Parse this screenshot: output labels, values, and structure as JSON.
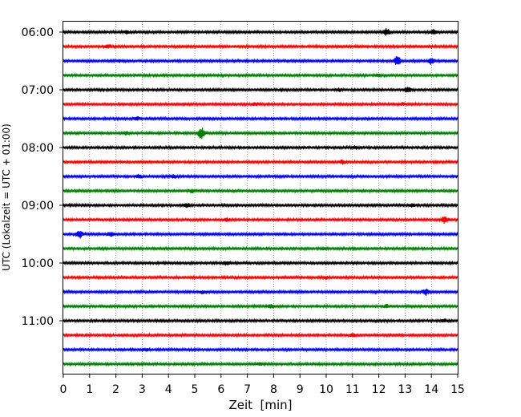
{
  "chart_data": {
    "type": "line",
    "subtype": "seismogram-helicorder",
    "xlabel": "Zeit  [min]",
    "ylabel": "UTC (Lokalzeit = UTC + 01:00)",
    "xlim": [
      0,
      15
    ],
    "x_ticks": [
      "0",
      "1",
      "2",
      "3",
      "4",
      "5",
      "6",
      "7",
      "8",
      "9",
      "10",
      "11",
      "12",
      "13",
      "14",
      "15"
    ],
    "y_tick_labels": [
      "06:00",
      "07:00",
      "08:00",
      "09:00",
      "10:00",
      "11:00"
    ],
    "grid": "vertical-dotted",
    "trace_colors": [
      "#000000",
      "#ff0000",
      "#0000ff",
      "#008000"
    ],
    "traces": [
      {
        "start": "06:00",
        "color": "#000000",
        "events": [
          {
            "t": 12.3,
            "amp": 1.8
          },
          {
            "t": 14.1,
            "amp": 1.2
          },
          {
            "t": 2.4,
            "amp": 0.6
          }
        ]
      },
      {
        "start": "06:15",
        "color": "#ff0000",
        "events": [
          {
            "t": 1.7,
            "amp": 1.0
          }
        ]
      },
      {
        "start": "06:30",
        "color": "#0000ff",
        "events": [
          {
            "t": 12.7,
            "amp": 2.4
          },
          {
            "t": 14.0,
            "amp": 1.6
          },
          {
            "t": 2.1,
            "amp": 0.6
          }
        ]
      },
      {
        "start": "06:45",
        "color": "#008000",
        "events": [
          {
            "t": 12.0,
            "amp": 0.6
          }
        ]
      },
      {
        "start": "07:00",
        "color": "#000000",
        "events": [
          {
            "t": 13.1,
            "amp": 1.6
          },
          {
            "t": 10.5,
            "amp": 0.7
          }
        ]
      },
      {
        "start": "07:15",
        "color": "#ff0000",
        "events": [
          {
            "t": 7.3,
            "amp": 0.8
          },
          {
            "t": 12.9,
            "amp": 0.6
          }
        ]
      },
      {
        "start": "07:30",
        "color": "#0000ff",
        "events": [
          {
            "t": 2.8,
            "amp": 0.8
          }
        ]
      },
      {
        "start": "07:45",
        "color": "#008000",
        "events": [
          {
            "t": 5.25,
            "amp": 3.0
          },
          {
            "t": 2.4,
            "amp": 0.8
          }
        ]
      },
      {
        "start": "08:00",
        "color": "#000000",
        "events": [
          {
            "t": 11.1,
            "amp": 0.7
          }
        ]
      },
      {
        "start": "08:15",
        "color": "#ff0000",
        "events": [
          {
            "t": 10.6,
            "amp": 1.0
          }
        ]
      },
      {
        "start": "08:30",
        "color": "#0000ff",
        "events": [
          {
            "t": 2.9,
            "amp": 1.0
          },
          {
            "t": 4.2,
            "amp": 0.8
          }
        ]
      },
      {
        "start": "08:45",
        "color": "#008000",
        "events": [
          {
            "t": 4.9,
            "amp": 0.7
          }
        ]
      },
      {
        "start": "09:00",
        "color": "#000000",
        "events": [
          {
            "t": 4.7,
            "amp": 1.2
          },
          {
            "t": 13.3,
            "amp": 0.7
          }
        ]
      },
      {
        "start": "09:15",
        "color": "#ff0000",
        "events": [
          {
            "t": 14.5,
            "amp": 1.8
          },
          {
            "t": 6.2,
            "amp": 0.8
          }
        ]
      },
      {
        "start": "09:30",
        "color": "#0000ff",
        "events": [
          {
            "t": 0.6,
            "amp": 2.2
          },
          {
            "t": 1.8,
            "amp": 1.0
          }
        ]
      },
      {
        "start": "09:45",
        "color": "#008000",
        "events": [
          {
            "t": 9.9,
            "amp": 0.6
          }
        ]
      },
      {
        "start": "10:00",
        "color": "#000000",
        "events": [
          {
            "t": 6.2,
            "amp": 0.9
          }
        ]
      },
      {
        "start": "10:15",
        "color": "#ff0000",
        "events": [
          {
            "t": 10.0,
            "amp": 0.7
          }
        ]
      },
      {
        "start": "10:30",
        "color": "#0000ff",
        "events": [
          {
            "t": 13.8,
            "amp": 1.8
          },
          {
            "t": 5.3,
            "amp": 0.8
          }
        ]
      },
      {
        "start": "10:45",
        "color": "#008000",
        "events": [
          {
            "t": 7.9,
            "amp": 0.8
          },
          {
            "t": 12.3,
            "amp": 0.8
          }
        ]
      },
      {
        "start": "11:00",
        "color": "#000000",
        "events": [
          {
            "t": 14.5,
            "amp": 0.7
          }
        ]
      },
      {
        "start": "11:15",
        "color": "#ff0000",
        "events": [
          {
            "t": 11.0,
            "amp": 0.9
          }
        ]
      },
      {
        "start": "11:30",
        "color": "#0000ff",
        "events": [
          {
            "t": 3.1,
            "amp": 0.8
          }
        ]
      },
      {
        "start": "11:45",
        "color": "#008000",
        "events": [
          {
            "t": 7.5,
            "amp": 0.6
          }
        ]
      }
    ]
  }
}
